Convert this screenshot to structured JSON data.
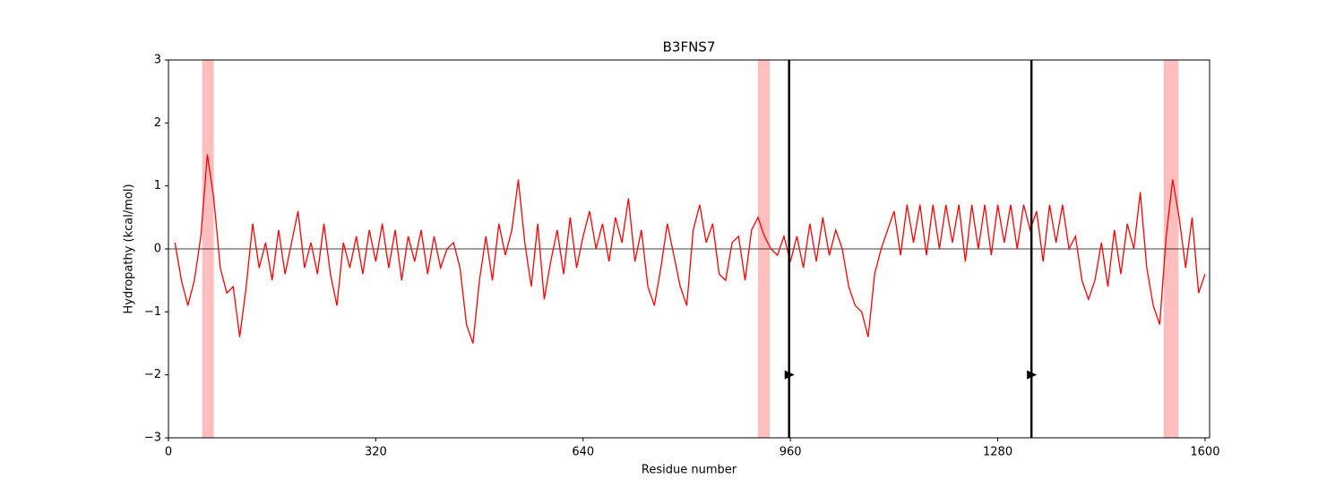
{
  "chart_data": {
    "type": "line",
    "title": "B3FNS7",
    "x_label": "Residue number",
    "y_label": "Hydropathy (kcal/mol)",
    "color": "#ff0000",
    "x": [
      10,
      20,
      30,
      40,
      50,
      60,
      70,
      80,
      90,
      100,
      110,
      120,
      130,
      140,
      150,
      160,
      170,
      180,
      190,
      200,
      210,
      220,
      230,
      240,
      250,
      260,
      270,
      280,
      290,
      300,
      310,
      320,
      330,
      340,
      350,
      360,
      370,
      380,
      390,
      400,
      410,
      420,
      430,
      440,
      450,
      460,
      470,
      480,
      490,
      500,
      510,
      520,
      530,
      540,
      550,
      560,
      570,
      580,
      590,
      600,
      610,
      620,
      630,
      640,
      650,
      660,
      670,
      680,
      690,
      700,
      710,
      720,
      730,
      740,
      750,
      760,
      770,
      780,
      790,
      800,
      810,
      820,
      830,
      840,
      850,
      860,
      870,
      880,
      890,
      900,
      910,
      920,
      930,
      940,
      950,
      960,
      970,
      980,
      990,
      1000,
      1010,
      1020,
      1030,
      1040,
      1050,
      1060,
      1070,
      1080,
      1090,
      1100,
      1110,
      1120,
      1130,
      1140,
      1150,
      1160,
      1170,
      1180,
      1190,
      1200,
      1210,
      1220,
      1230,
      1240,
      1250,
      1260,
      1270,
      1280,
      1290,
      1300,
      1310,
      1320,
      1330,
      1340,
      1350,
      1360,
      1370,
      1380,
      1390,
      1400,
      1410,
      1420,
      1430,
      1440,
      1450,
      1460,
      1470,
      1480,
      1490,
      1500,
      1510,
      1520,
      1530,
      1540,
      1550,
      1560,
      1570,
      1580,
      1590,
      1600
    ],
    "values": [
      0.1,
      -0.5,
      -0.9,
      -0.5,
      0.2,
      1.5,
      0.8,
      -0.3,
      -0.7,
      -0.6,
      -1.4,
      -0.6,
      0.4,
      -0.3,
      0.1,
      -0.5,
      0.3,
      -0.4,
      0.1,
      0.6,
      -0.3,
      0.1,
      -0.4,
      0.4,
      -0.4,
      -0.9,
      0.1,
      -0.3,
      0.2,
      -0.4,
      0.3,
      -0.2,
      0.4,
      -0.3,
      0.3,
      -0.5,
      0.2,
      -0.2,
      0.3,
      -0.4,
      0.2,
      -0.3,
      0.0,
      0.1,
      -0.3,
      -1.2,
      -1.5,
      -0.5,
      0.2,
      -0.5,
      0.4,
      -0.1,
      0.3,
      1.1,
      0.1,
      -0.6,
      0.4,
      -0.8,
      -0.2,
      0.3,
      -0.4,
      0.5,
      -0.3,
      0.2,
      0.6,
      0.0,
      0.4,
      -0.2,
      0.5,
      0.1,
      0.8,
      -0.2,
      0.3,
      -0.6,
      -0.9,
      -0.3,
      0.4,
      -0.1,
      -0.6,
      -0.9,
      0.3,
      0.7,
      0.1,
      0.4,
      -0.4,
      -0.5,
      0.1,
      0.2,
      -0.5,
      0.3,
      0.5,
      0.2,
      0.0,
      -0.1,
      0.2,
      -0.2,
      0.2,
      -0.3,
      0.4,
      -0.2,
      0.5,
      -0.1,
      0.3,
      0.0,
      -0.6,
      -0.9,
      -1.0,
      -1.4,
      -0.4,
      0.0,
      0.3,
      0.6,
      -0.1,
      0.7,
      0.1,
      0.7,
      -0.1,
      0.7,
      0.0,
      0.7,
      0.1,
      0.7,
      -0.2,
      0.7,
      0.0,
      0.7,
      -0.1,
      0.7,
      0.1,
      0.7,
      0.0,
      0.7,
      0.3,
      0.6,
      -0.2,
      0.7,
      0.1,
      0.7,
      0.0,
      0.2,
      -0.5,
      -0.8,
      -0.5,
      0.1,
      -0.6,
      0.3,
      -0.4,
      0.4,
      0.0,
      0.9,
      -0.3,
      -0.9,
      -1.2,
      0.2,
      1.1,
      0.5,
      -0.3,
      0.5,
      -0.7,
      -0.4
    ],
    "xlim": [
      0,
      1607
    ],
    "ylim": [
      -3,
      3
    ],
    "xticks": [
      0,
      320,
      640,
      960,
      1280,
      1600
    ],
    "yticks": [
      {
        "value": -3,
        "label": "−3"
      },
      {
        "value": -2,
        "label": "−2"
      },
      {
        "value": -1,
        "label": "−1"
      },
      0,
      1,
      2,
      3
    ],
    "highlight_color": "#ffbfbf",
    "highlight_regions": [
      [
        52,
        70
      ],
      [
        910,
        928
      ],
      [
        1536,
        1559
      ]
    ],
    "vlines": [
      958,
      1332
    ],
    "vline_marker_y": -2,
    "hlines": [
      0
    ]
  }
}
